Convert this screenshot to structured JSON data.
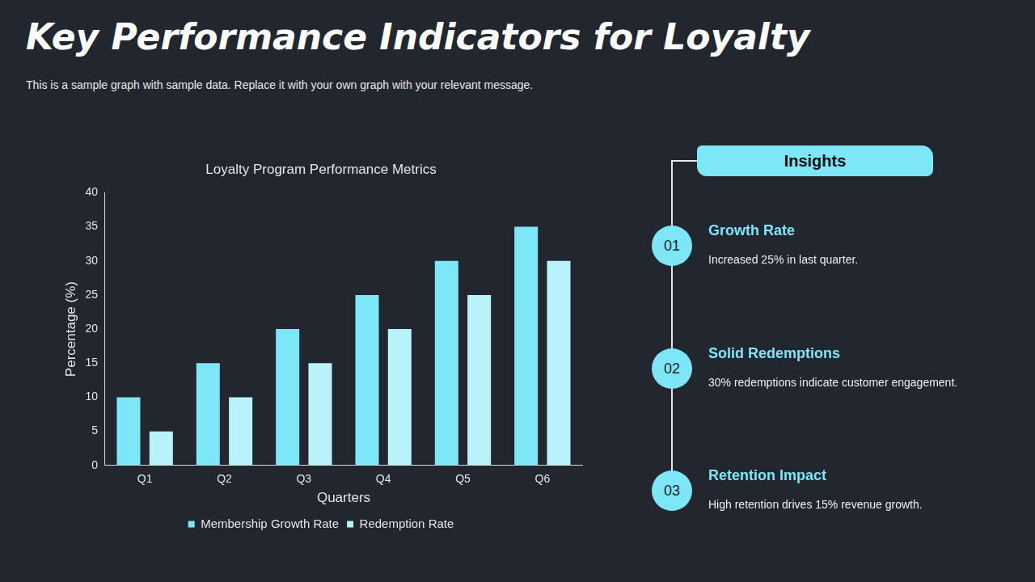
{
  "header": {
    "title": "Key Performance Indicators for Loyalty",
    "subtitle": "This is a sample graph with sample data. Replace it with your own graph with your relevant message."
  },
  "chart_data": {
    "type": "bar",
    "title": "Loyalty Program Performance Metrics",
    "x_label": "Quarters",
    "y_label": "Percentage (%)",
    "categories": [
      "Q1",
      "Q2",
      "Q3",
      "Q4",
      "Q5",
      "Q6"
    ],
    "series": [
      {
        "name": "Membership Growth Rate",
        "color": "#7de6f7",
        "values": [
          10,
          15,
          20,
          25,
          30,
          35
        ]
      },
      {
        "name": "Redemption Rate",
        "color": "#b9f2fb",
        "values": [
          5,
          10,
          15,
          20,
          25,
          30
        ]
      }
    ],
    "ylim": [
      0,
      40
    ],
    "yticks": [
      0,
      5,
      10,
      15,
      20,
      25,
      30,
      35,
      40
    ],
    "grid": false,
    "legend": "bottom"
  },
  "insights": {
    "title": "Insights",
    "items": [
      {
        "number": "01",
        "heading": "Growth Rate",
        "text": "Increased 25% in last quarter."
      },
      {
        "number": "02",
        "heading": "Solid Redemptions",
        "text": "30% redemptions indicate customer engagement."
      },
      {
        "number": "03",
        "heading": "Retention Impact",
        "text": "High retention drives 15% revenue growth."
      }
    ]
  }
}
